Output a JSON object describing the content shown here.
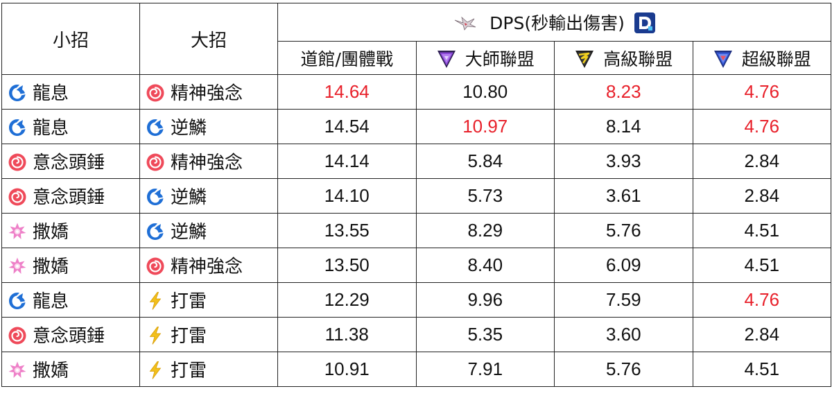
{
  "headers": {
    "fast": "小招",
    "charged": "大招",
    "dps_title": "DPS(秒輸出傷害)",
    "leagues": [
      {
        "label": "道館/團體戰",
        "icon": null
      },
      {
        "label": "大師聯盟",
        "icon": "master-league-icon"
      },
      {
        "label": "高級聯盟",
        "icon": "ultra-league-icon"
      },
      {
        "label": "超級聯盟",
        "icon": "great-league-icon"
      }
    ]
  },
  "colors": {
    "highlight": "#e8202a",
    "dragon": "#1f6fd6",
    "psychic": "#ef4a5a",
    "fairy": "#ee80c8",
    "electric": "#f2c01c"
  },
  "rows": [
    {
      "fast": "龍息",
      "fast_icon": "dragon-type-icon",
      "charged": "精神強念",
      "charged_icon": "psychic-type-icon",
      "values": [
        "14.64",
        "10.80",
        "8.23",
        "4.76"
      ],
      "highlight": [
        true,
        false,
        true,
        true
      ]
    },
    {
      "fast": "龍息",
      "fast_icon": "dragon-type-icon",
      "charged": "逆鱗",
      "charged_icon": "dragon-type-icon",
      "values": [
        "14.54",
        "10.97",
        "8.14",
        "4.76"
      ],
      "highlight": [
        false,
        true,
        false,
        true
      ]
    },
    {
      "fast": "意念頭錘",
      "fast_icon": "psychic-type-icon",
      "charged": "精神強念",
      "charged_icon": "psychic-type-icon",
      "values": [
        "14.14",
        "5.84",
        "3.93",
        "2.84"
      ],
      "highlight": [
        false,
        false,
        false,
        false
      ]
    },
    {
      "fast": "意念頭錘",
      "fast_icon": "psychic-type-icon",
      "charged": "逆鱗",
      "charged_icon": "dragon-type-icon",
      "values": [
        "14.10",
        "5.73",
        "3.61",
        "2.84"
      ],
      "highlight": [
        false,
        false,
        false,
        false
      ]
    },
    {
      "fast": "撒嬌",
      "fast_icon": "fairy-type-icon",
      "charged": "逆鱗",
      "charged_icon": "dragon-type-icon",
      "values": [
        "13.55",
        "8.29",
        "5.76",
        "4.51"
      ],
      "highlight": [
        false,
        false,
        false,
        false
      ]
    },
    {
      "fast": "撒嬌",
      "fast_icon": "fairy-type-icon",
      "charged": "精神強念",
      "charged_icon": "psychic-type-icon",
      "values": [
        "13.50",
        "8.40",
        "6.09",
        "4.51"
      ],
      "highlight": [
        false,
        false,
        false,
        false
      ]
    },
    {
      "fast": "龍息",
      "fast_icon": "dragon-type-icon",
      "charged": "打雷",
      "charged_icon": "electric-type-icon",
      "values": [
        "12.29",
        "9.96",
        "7.59",
        "4.76"
      ],
      "highlight": [
        false,
        false,
        false,
        true
      ]
    },
    {
      "fast": "意念頭錘",
      "fast_icon": "psychic-type-icon",
      "charged": "打雷",
      "charged_icon": "electric-type-icon",
      "values": [
        "11.38",
        "5.35",
        "3.60",
        "2.84"
      ],
      "highlight": [
        false,
        false,
        false,
        false
      ]
    },
    {
      "fast": "撒嬌",
      "fast_icon": "fairy-type-icon",
      "charged": "打雷",
      "charged_icon": "electric-type-icon",
      "values": [
        "10.91",
        "7.91",
        "5.76",
        "4.51"
      ],
      "highlight": [
        false,
        false,
        false,
        false
      ]
    }
  ]
}
